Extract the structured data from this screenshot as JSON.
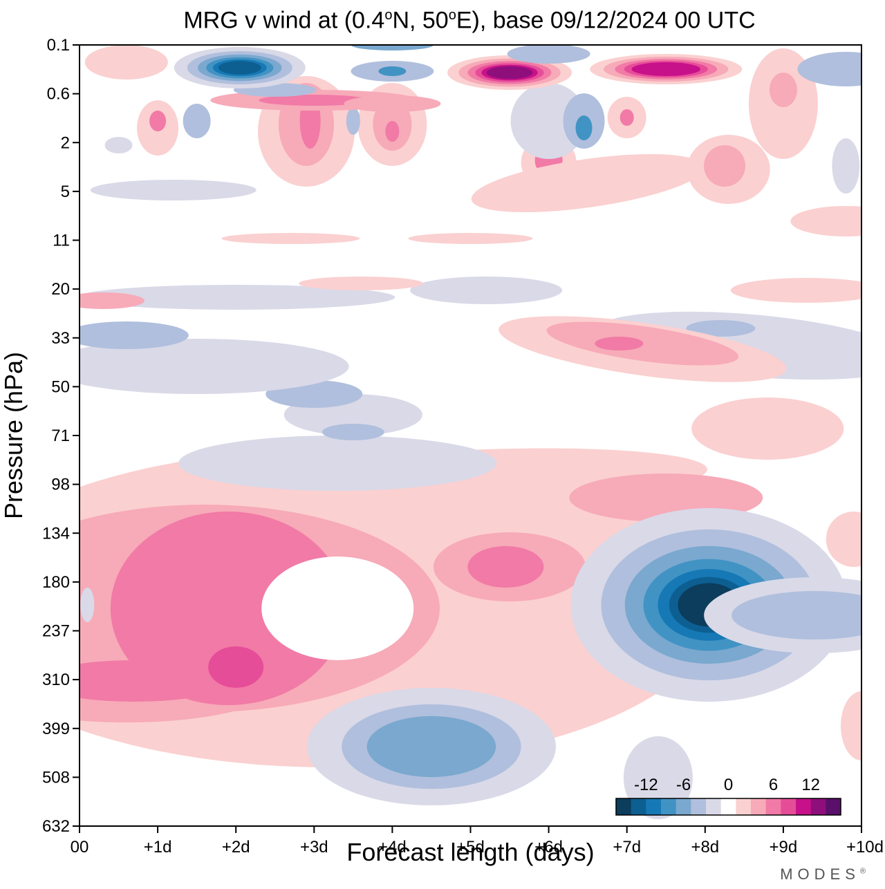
{
  "title": {
    "prefix": "MRG v wind at (0.4",
    "deg1": "o",
    "mid": "N, 50",
    "deg2": "o",
    "suffix": "E),  base 09/12/2024  00 UTC"
  },
  "brand": "MODES",
  "brand_mark": "®",
  "chart_data": {
    "type": "heatmap",
    "subtype": "filled-contour",
    "xlabel": "Forecast length (days)",
    "ylabel": "Pressure (hPa)",
    "x_ticks": [
      "00",
      "+1d",
      "+2d",
      "+3d",
      "+4d",
      "+5d",
      "+6d",
      "+7d",
      "+8d",
      "+9d",
      "+10d"
    ],
    "x_range_days": [
      0,
      10
    ],
    "y_ticks": [
      "0.1",
      "0.6",
      "2",
      "5",
      "11",
      "20",
      "33",
      "50",
      "71",
      "98",
      "134",
      "180",
      "237",
      "310",
      "399",
      "508",
      "632"
    ],
    "y_scale": "log pressure, top to bottom increasing",
    "colorbar": {
      "labels": [
        "-12",
        "-6",
        "0",
        "6",
        "12"
      ],
      "levels": [
        -15,
        -13.5,
        -12,
        -10.5,
        -9,
        -7.5,
        -6,
        -4.5,
        -3,
        -1.5,
        1.5,
        3,
        4.5,
        6,
        7.5,
        9,
        10.5,
        12,
        13.5,
        15
      ],
      "colors": [
        "#0c3d5c",
        "#0d5f92",
        "#1679b5",
        "#4193c4",
        "#7aa8cf",
        "#b0bfdd",
        "#d9d9e8",
        "#ffffff",
        "#fbd0d0",
        "#f7aab8",
        "#f17aa6",
        "#e64d98",
        "#c7118a",
        "#8e0f7b",
        "#5a0f6a"
      ]
    },
    "features": [
      {
        "x": 8.0,
        "p": 190,
        "value": -15,
        "note": "strong negative core near +8d, 180-237 hPa"
      },
      {
        "x": 2.0,
        "p": 300,
        "value": 9,
        "note": "positive core near +2d, ~300 hPa"
      },
      {
        "x": 5.5,
        "p": 170,
        "value": 7,
        "note": "positive maximum near +5.5d, ~170 hPa"
      },
      {
        "x": 4.5,
        "p": 460,
        "value": -5,
        "note": "negative region near +4.5d, ~450 hPa"
      },
      {
        "x": 2.0,
        "p": 0.3,
        "value": -14,
        "note": "upper-level negative core near +2d"
      },
      {
        "x": 5.5,
        "p": 0.35,
        "value": 14,
        "note": "upper-level positive core near +5.5d"
      },
      {
        "x": 7.5,
        "p": 0.35,
        "value": 12,
        "note": "upper-level positive core near +7.5d"
      },
      {
        "x": 7.0,
        "p": 33,
        "value": 6,
        "note": "positive patch near +7d, ~33 hPa"
      }
    ]
  },
  "colors": {
    "neg_dark": "#0c3d5c",
    "neg_mid": "#1679b5",
    "neutral": "#ffffff",
    "pos_mid": "#f17aa6",
    "pos_dark": "#5a0f6a"
  }
}
